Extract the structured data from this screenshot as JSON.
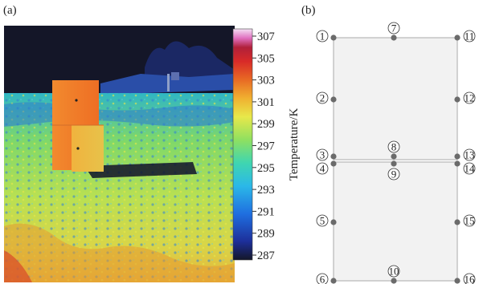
{
  "figure": {
    "panel_a_label": "(a)",
    "panel_b_label": "(b)"
  },
  "colorbar": {
    "title": "Temperature/K",
    "ticks": [
      "307",
      "305",
      "303",
      "301",
      "299",
      "297",
      "295",
      "293",
      "291",
      "289",
      "287"
    ],
    "min": 287,
    "max": 307,
    "colormap": [
      "#1a1a3a",
      "#1d2f9a",
      "#1f6fe0",
      "#2bb8e8",
      "#3fd6b0",
      "#8fe060",
      "#e8e84a",
      "#f0b030",
      "#e86a24",
      "#d82a28",
      "#b0203a",
      "#e070c0",
      "#f4e0f4"
    ]
  },
  "thermal_image": {
    "description_colors": {
      "sky": "#141628",
      "ground_hot": "#e5a436",
      "box_front": "#f07d2c",
      "box_side": "#ed9a3e"
    }
  },
  "points": {
    "labels": [
      "1",
      "2",
      "3",
      "4",
      "5",
      "6",
      "7",
      "8",
      "9",
      "10",
      "11",
      "12",
      "13",
      "14",
      "15",
      "16"
    ],
    "point_color": "#6b6b6b",
    "plate_fill": "#f2f2f2",
    "plate_stroke": "#aaaaaa"
  }
}
